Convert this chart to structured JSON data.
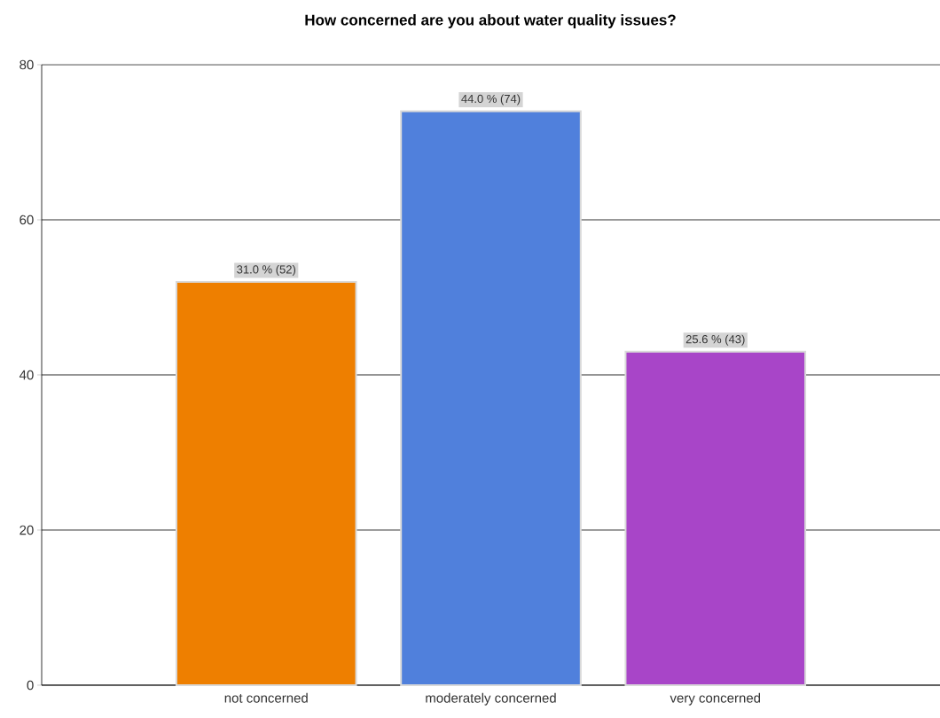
{
  "chart_data": {
    "type": "bar",
    "title": "How concerned are you about water quality issues?",
    "categories": [
      "not concerned",
      "moderately concerned",
      "very concerned"
    ],
    "values": [
      52,
      74,
      43
    ],
    "colors": [
      "#ee7f00",
      "#5080dc",
      "#a845c8"
    ],
    "value_labels": [
      "31.0 % (52)",
      "44.0 % (74)",
      "25.6 % (43)"
    ],
    "ylim": [
      0,
      80
    ],
    "yticks": [
      0,
      20,
      40,
      60,
      80
    ],
    "grid": "y"
  }
}
